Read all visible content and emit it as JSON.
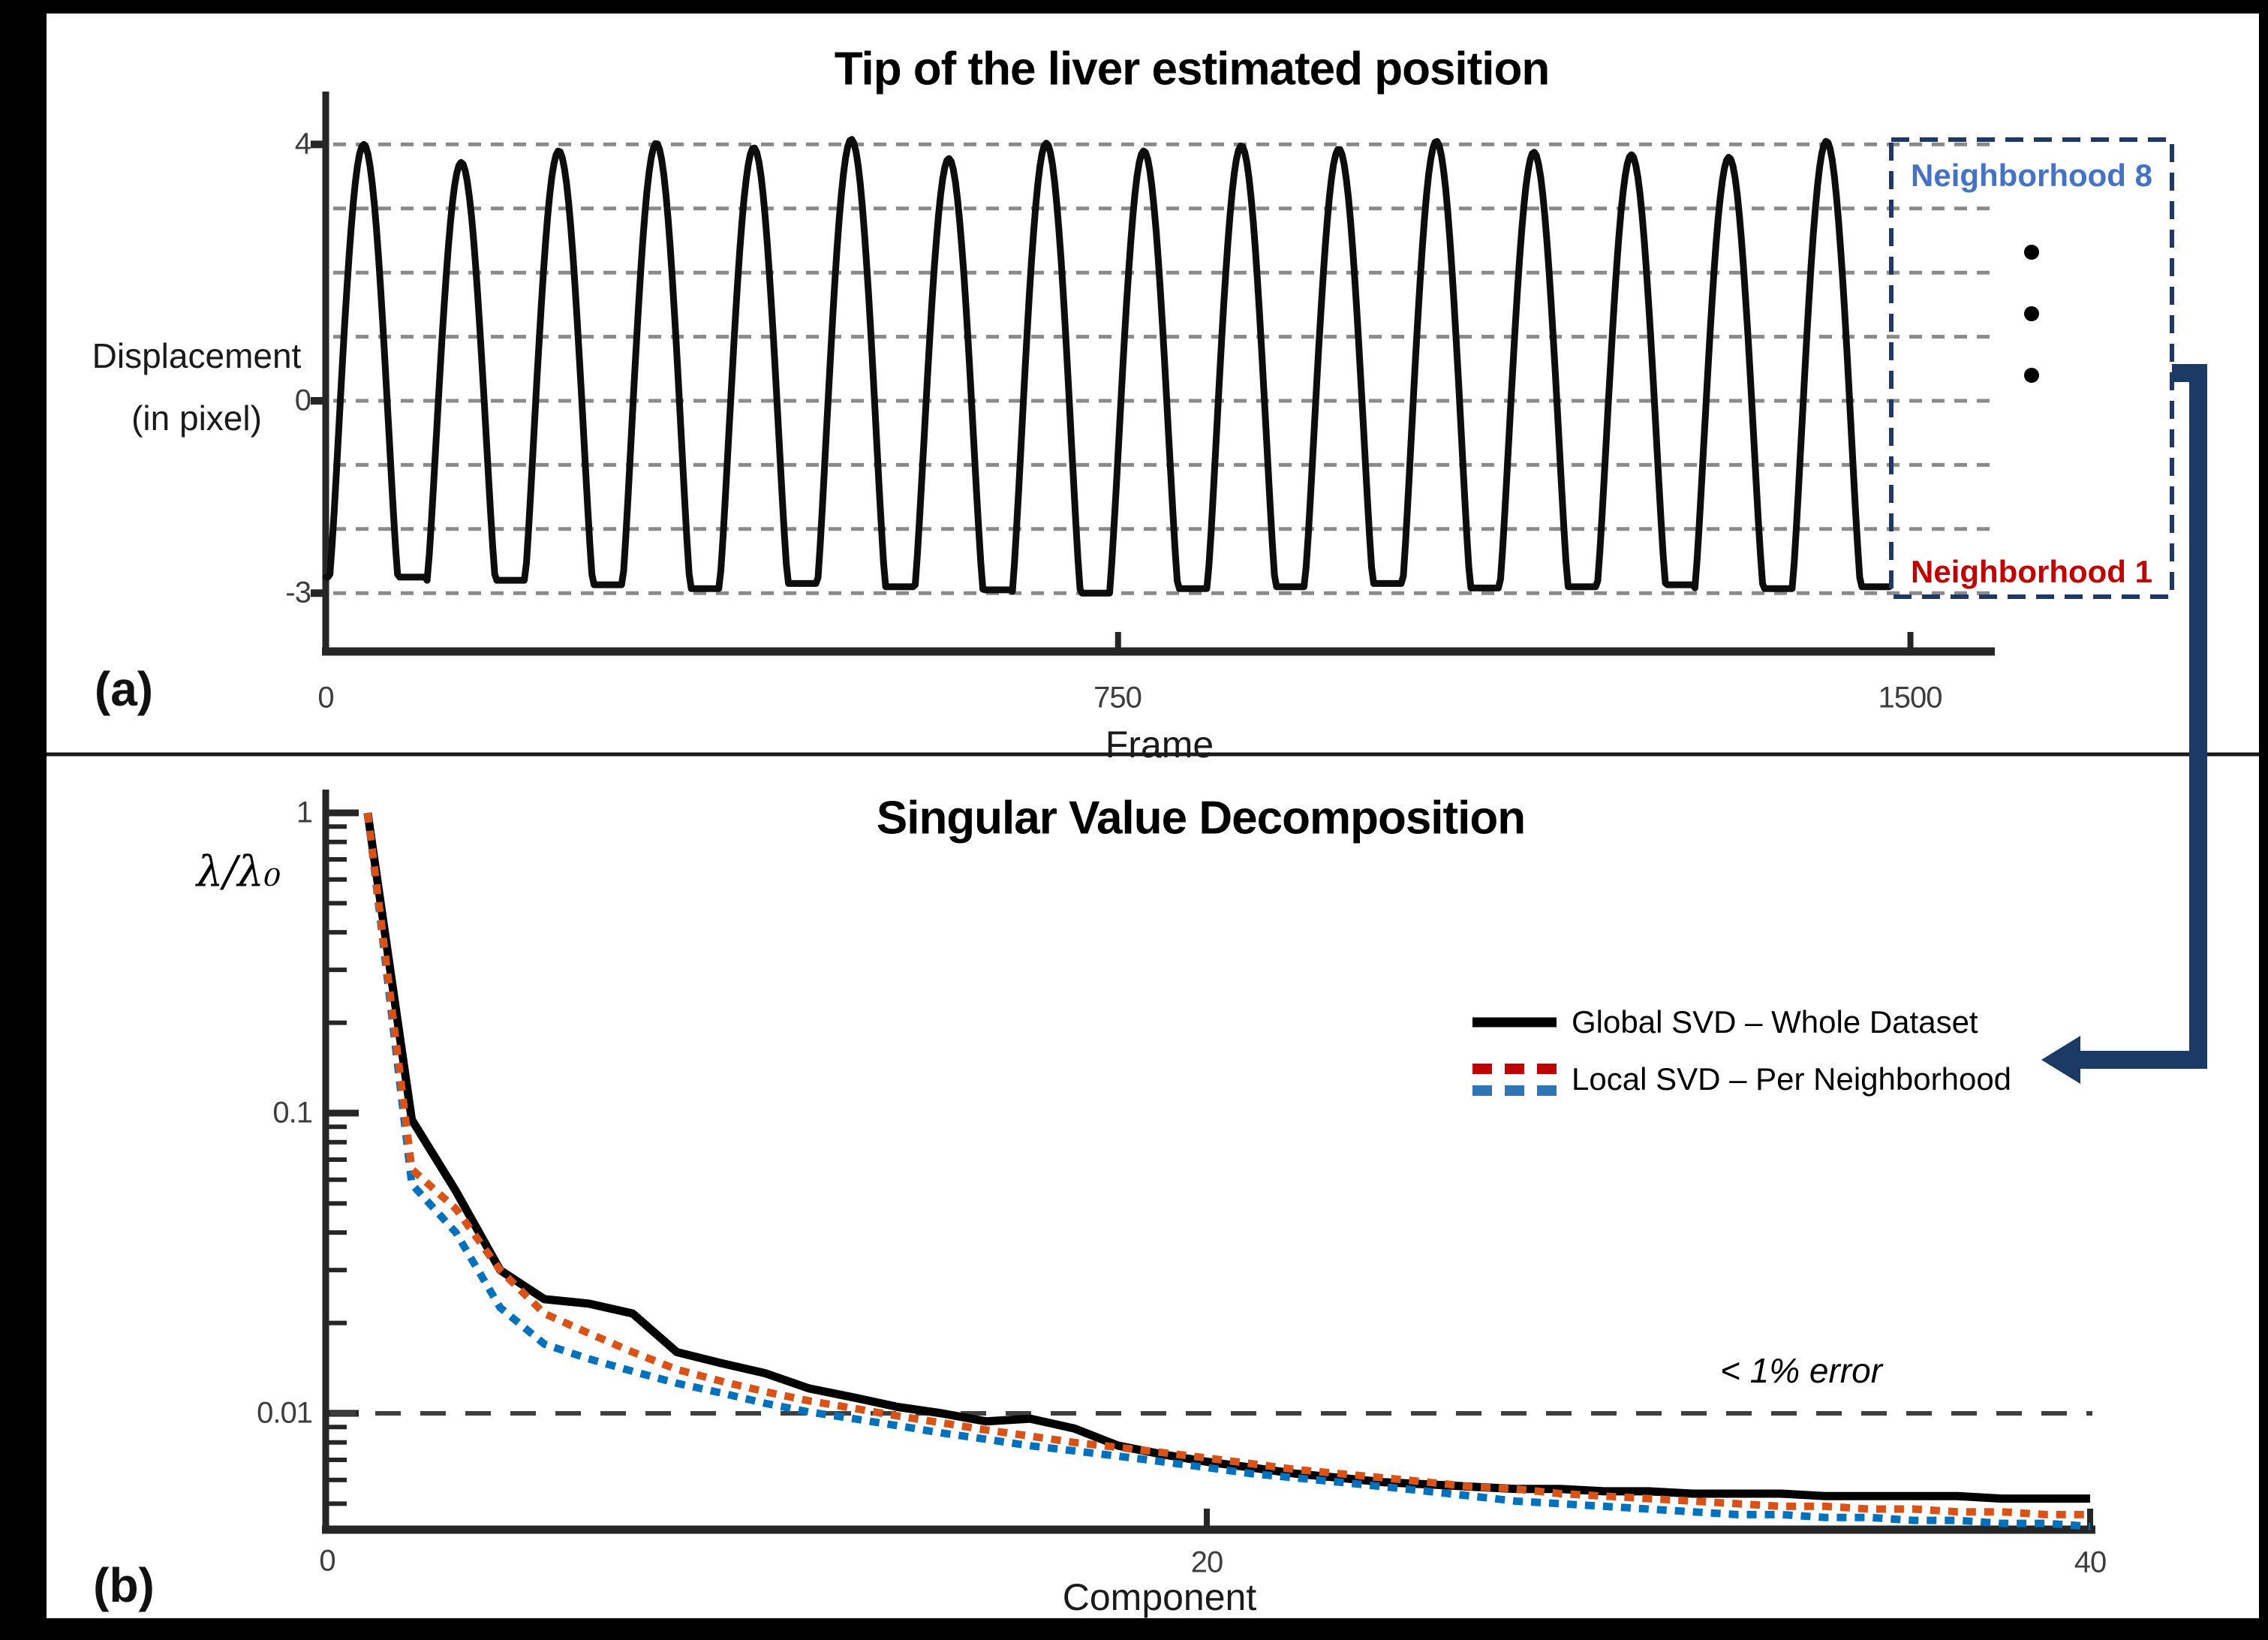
{
  "figure": {
    "panel_a_label": "(a)",
    "panel_b_label": "(b)",
    "divider_color": "#1a1a1a",
    "frame_color": "#000000"
  },
  "neighborhood_box": {
    "top_label": "Neighborhood 8",
    "bottom_label": "Neighborhood 1",
    "top_label_color": "#4472c4",
    "bottom_label_color": "#c00000",
    "border_color": "#1f3864",
    "arrow_color": "#1b3a66",
    "dots_icon": "vertical-ellipsis-dots"
  },
  "legend": {
    "global_label": "Global SVD – Whole Dataset",
    "local_label": "Local SVD – Per Neighborhood",
    "global_color": "#000000",
    "local_colors": [
      "#c00000",
      "#0072bd"
    ]
  },
  "chart_data": [
    {
      "id": "tip-displacement",
      "type": "line",
      "title": "Tip of the liver estimated position",
      "xlabel": "Frame",
      "ylabel_line1": "Displacement",
      "ylabel_line2": "(in pixel)",
      "xticks": [
        "0",
        "750",
        "1500"
      ],
      "xtick_values": [
        0,
        750,
        1500
      ],
      "yticks": [
        "4",
        "0",
        "-3"
      ],
      "ytick_values": [
        4,
        0,
        -3
      ],
      "gridline_values": [
        4,
        3,
        2,
        1,
        0,
        -1,
        -2,
        -3
      ],
      "xlim": [
        0,
        1580
      ],
      "ylim": [
        -3.6,
        4.8
      ],
      "grid": "dashed-horizontal",
      "line_color": "#0d0d0d",
      "gridline_color": "#8a8a8a",
      "series": [
        {
          "name": "estimated tip displacement",
          "period_frames": 92.3,
          "first_peak_frame": 36,
          "pulse_width": 0.7,
          "pulse_power": 1.2,
          "frame_start": 0,
          "frame_end": 1480,
          "peaks": [
            4.0,
            3.72,
            3.9,
            4.02,
            3.95,
            4.08,
            3.78,
            4.02,
            3.9,
            3.98,
            3.93,
            4.05,
            3.88,
            3.84,
            3.8,
            4.05
          ],
          "troughs": [
            -2.75,
            -2.8,
            -2.87,
            -2.93,
            -2.85,
            -2.9,
            -2.95,
            -3.0,
            -2.93,
            -2.9,
            -2.85,
            -2.92,
            -2.9,
            -2.87,
            -2.93,
            -2.9
          ]
        }
      ]
    },
    {
      "id": "svd-scree",
      "type": "line",
      "title": "Singular Value Decomposition",
      "xlabel": "Component",
      "ylabel": "λ/λ₀",
      "yscale": "log",
      "xticks": [
        "0",
        "20",
        "40"
      ],
      "xtick_values": [
        0,
        20,
        40
      ],
      "yticks": [
        "1",
        "0.1",
        "0.01"
      ],
      "ytick_values": [
        1,
        0.1,
        0.01
      ],
      "xlim": [
        0,
        40.5
      ],
      "ylim": [
        0.0041,
        1.2
      ],
      "threshold_value": 0.01,
      "annotation": "< 1% error",
      "legend_position": "upper-right",
      "series": [
        {
          "name": "Global SVD – Whole Dataset",
          "color": "#000000",
          "style": "solid",
          "values": [
            1.0,
            0.095,
            0.055,
            0.03,
            0.024,
            0.0232,
            0.0215,
            0.016,
            0.0147,
            0.0136,
            0.0121,
            0.0113,
            0.0105,
            0.01,
            0.0094,
            0.0096,
            0.0089,
            0.0078,
            0.0073,
            0.0069,
            0.0066,
            0.0063,
            0.0061,
            0.0059,
            0.0058,
            0.0057,
            0.0056,
            0.0056,
            0.0055,
            0.0055,
            0.0054,
            0.0054,
            0.0054,
            0.0053,
            0.0053,
            0.0053,
            0.0053,
            0.0052,
            0.0052,
            0.0052
          ]
        },
        {
          "name": "Local SVD – Per Neighborhood (red)",
          "color": "#d95319",
          "style": "dashed",
          "values": [
            1.0,
            0.065,
            0.048,
            0.03,
            0.0215,
            0.0185,
            0.016,
            0.014,
            0.0128,
            0.0118,
            0.011,
            0.0104,
            0.0098,
            0.0093,
            0.0088,
            0.0084,
            0.008,
            0.0077,
            0.0074,
            0.0071,
            0.0068,
            0.0065,
            0.0063,
            0.0061,
            0.0059,
            0.0057,
            0.0056,
            0.0054,
            0.0053,
            0.0052,
            0.0051,
            0.005,
            0.0049,
            0.0049,
            0.0048,
            0.0048,
            0.0047,
            0.0047,
            0.0046,
            0.0046
          ]
        },
        {
          "name": "Local SVD – Per Neighborhood (blue)",
          "color": "#0072bd",
          "style": "dashed",
          "values": [
            1.0,
            0.058,
            0.04,
            0.0225,
            0.017,
            0.0152,
            0.0138,
            0.0126,
            0.0117,
            0.0108,
            0.0101,
            0.0096,
            0.0091,
            0.0086,
            0.0082,
            0.0078,
            0.0075,
            0.0072,
            0.0069,
            0.0066,
            0.0063,
            0.0061,
            0.0059,
            0.0057,
            0.0055,
            0.0053,
            0.0051,
            0.005,
            0.0049,
            0.0048,
            0.0047,
            0.0046,
            0.0046,
            0.0045,
            0.0045,
            0.0044,
            0.0044,
            0.0043,
            0.0043,
            0.0042
          ]
        }
      ]
    }
  ]
}
